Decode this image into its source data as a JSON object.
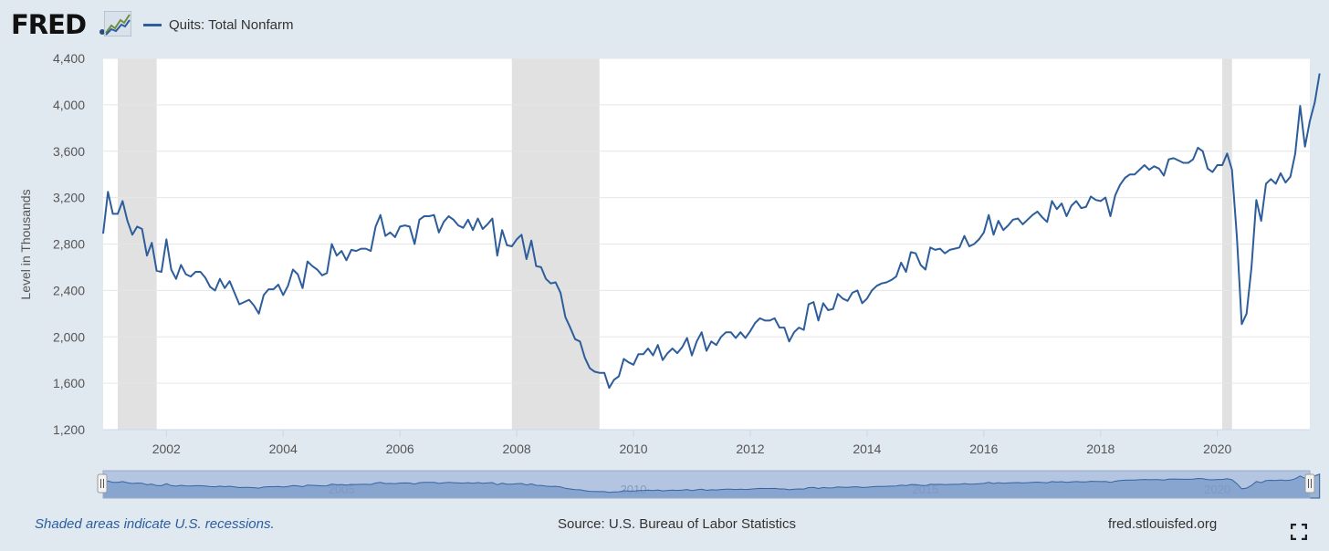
{
  "header": {
    "logo_text": "FRED",
    "legend_label": "Quits: Total Nonfarm"
  },
  "footer": {
    "recession_note": "Shaded areas indicate U.S. recessions.",
    "source": "Source: U.S. Bureau of Labor Statistics",
    "site": "fred.stlouisfed.org"
  },
  "colors": {
    "series": "#2d5d9a",
    "recession": "#e1e1e1",
    "grid": "#e6e6e6",
    "page_background": "#e1e9f0",
    "navigator_fill": "#7f9fcb"
  },
  "chart_data": {
    "type": "line",
    "title": "Quits: Total Nonfarm",
    "xlabel": "",
    "ylabel": "Level in Thousands",
    "xlim": [
      2000.917,
      2021.583
    ],
    "ylim": [
      1200,
      4400
    ],
    "y_ticks": [
      1200,
      1600,
      2000,
      2400,
      2800,
      3200,
      3600,
      4000,
      4400
    ],
    "y_tick_labels": [
      "1,200",
      "1,600",
      "2,000",
      "2,400",
      "2,800",
      "3,200",
      "3,600",
      "4,000",
      "4,400"
    ],
    "x_ticks": [
      2002,
      2004,
      2006,
      2008,
      2010,
      2012,
      2014,
      2016,
      2018,
      2020
    ],
    "x_tick_labels": [
      "2002",
      "2004",
      "2006",
      "2008",
      "2010",
      "2012",
      "2014",
      "2016",
      "2018",
      "2020"
    ],
    "navigator_labels": [
      {
        "year": 2005,
        "label": "2005"
      },
      {
        "year": 2010,
        "label": "2010"
      },
      {
        "year": 2015,
        "label": "2015"
      },
      {
        "year": 2020,
        "label": "2020"
      }
    ],
    "recessions": [
      [
        2001.167,
        2001.833
      ],
      [
        2007.917,
        2009.417
      ],
      [
        2020.083,
        2020.25
      ]
    ],
    "grid": true,
    "series": [
      {
        "name": "Quits: Total Nonfarm",
        "start_year": 2000,
        "start_month": 12,
        "values": [
          2890,
          3250,
          3060,
          3060,
          3170,
          3000,
          2880,
          2950,
          2930,
          2700,
          2810,
          2570,
          2560,
          2840,
          2580,
          2500,
          2620,
          2540,
          2520,
          2560,
          2560,
          2510,
          2430,
          2400,
          2500,
          2420,
          2480,
          2380,
          2280,
          2300,
          2320,
          2270,
          2200,
          2360,
          2410,
          2410,
          2450,
          2360,
          2440,
          2580,
          2540,
          2420,
          2650,
          2610,
          2580,
          2530,
          2550,
          2800,
          2700,
          2740,
          2660,
          2750,
          2740,
          2760,
          2760,
          2740,
          2950,
          3050,
          2870,
          2900,
          2860,
          2950,
          2960,
          2950,
          2800,
          3010,
          3040,
          3040,
          3050,
          2900,
          2990,
          3040,
          3010,
          2960,
          2940,
          3010,
          2920,
          3020,
          2930,
          2970,
          3020,
          2700,
          2920,
          2790,
          2780,
          2840,
          2880,
          2670,
          2830,
          2610,
          2600,
          2500,
          2460,
          2470,
          2380,
          2170,
          2080,
          1980,
          1960,
          1820,
          1730,
          1700,
          1690,
          1690,
          1560,
          1630,
          1660,
          1810,
          1780,
          1760,
          1850,
          1850,
          1900,
          1840,
          1930,
          1800,
          1860,
          1900,
          1860,
          1910,
          1990,
          1840,
          1960,
          2040,
          1880,
          1960,
          1930,
          2000,
          2040,
          2040,
          1990,
          2040,
          1990,
          2050,
          2120,
          2160,
          2140,
          2140,
          2160,
          2080,
          2080,
          1960,
          2040,
          2080,
          2060,
          2280,
          2300,
          2140,
          2290,
          2230,
          2240,
          2370,
          2330,
          2310,
          2380,
          2400,
          2290,
          2330,
          2400,
          2440,
          2460,
          2470,
          2490,
          2520,
          2640,
          2560,
          2730,
          2720,
          2620,
          2580,
          2770,
          2750,
          2760,
          2720,
          2750,
          2760,
          2770,
          2870,
          2780,
          2800,
          2840,
          2900,
          3050,
          2880,
          3000,
          2920,
          2960,
          3010,
          3020,
          2970,
          3010,
          3050,
          3080,
          3030,
          2990,
          3170,
          3100,
          3150,
          3040,
          3130,
          3170,
          3110,
          3120,
          3210,
          3180,
          3170,
          3200,
          3040,
          3220,
          3310,
          3370,
          3400,
          3400,
          3440,
          3480,
          3440,
          3470,
          3450,
          3390,
          3530,
          3540,
          3520,
          3500,
          3500,
          3530,
          3630,
          3600,
          3450,
          3420,
          3480,
          3480,
          3580,
          3440,
          2860,
          2110,
          2200,
          2600,
          3180,
          3000,
          3320,
          3360,
          3320,
          3410,
          3330,
          3380,
          3580,
          3990,
          3640,
          3860,
          4020,
          4270
        ]
      }
    ]
  }
}
